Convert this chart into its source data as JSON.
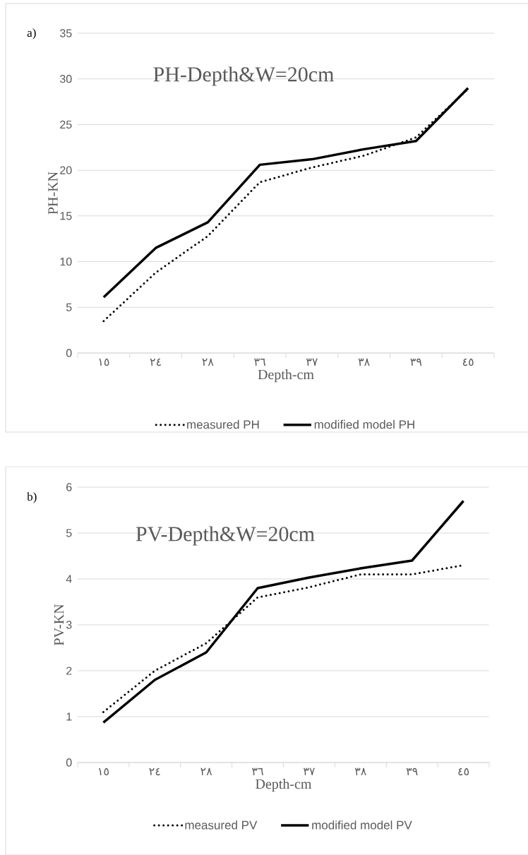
{
  "chart_data": [
    {
      "type": "line",
      "title": "PH-Depth&W=20cm",
      "xlabel": "Depth-cm",
      "ylabel": "PH-KN",
      "annotations": [
        "a)"
      ],
      "categories": [
        "١٥",
        "٢٤",
        "٢٨",
        "٣٦",
        "٣٧",
        "٣٨",
        "٣٩",
        "٤٥"
      ],
      "ylim": [
        0,
        35
      ],
      "yticks": [
        0,
        5,
        10,
        15,
        20,
        25,
        30,
        35
      ],
      "grid": "y",
      "legend": "bottom",
      "series": [
        {
          "name": "measured PH",
          "color": "#000000",
          "line_style": "dotted",
          "values": [
            3.5,
            8.8,
            12.8,
            18.7,
            20.3,
            21.6,
            23.6,
            28.9
          ]
        },
        {
          "name": "modified model PH",
          "color": "#000000",
          "line_style": "solid",
          "values": [
            6.1,
            11.5,
            14.3,
            20.6,
            21.2,
            22.3,
            23.2,
            29.0
          ]
        }
      ]
    },
    {
      "type": "line",
      "title": "PV-Depth&W=20cm",
      "xlabel": "Depth-cm",
      "ylabel": "PV-KN",
      "annotations": [
        "b)"
      ],
      "categories": [
        "١٥",
        "٢٤",
        "٢٨",
        "٣٦",
        "٣٧",
        "٣٨",
        "٣٩",
        "٤٥"
      ],
      "ylim": [
        0,
        6
      ],
      "yticks": [
        0,
        1,
        2,
        3,
        4,
        5,
        6
      ],
      "grid": "y",
      "legend": "bottom",
      "series": [
        {
          "name": "measured PV",
          "color": "#000000",
          "line_style": "dotted",
          "values": [
            1.1,
            2.0,
            2.6,
            3.6,
            3.82,
            4.1,
            4.1,
            4.3
          ]
        },
        {
          "name": "modified model PV",
          "color": "#000000",
          "line_style": "solid",
          "values": [
            0.87,
            1.8,
            2.4,
            3.8,
            4.03,
            4.23,
            4.4,
            5.7
          ]
        }
      ]
    }
  ]
}
